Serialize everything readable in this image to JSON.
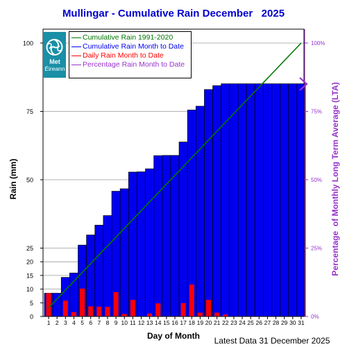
{
  "title": "Mullingar - Cumulative Rain December   2025",
  "footer": "Latest Data 31 December 2025",
  "logo": {
    "line1": "Met",
    "line2": "Éireann",
    "icon": "met-eireann-swirl-icon"
  },
  "colors": {
    "title": "#0000cc",
    "cumulative_bar": "#0000ee",
    "daily_bar": "#ff0000",
    "lta_line": "#007700",
    "percent": "#9933cc"
  },
  "legend": [
    {
      "label": "Cumulative Rain 1991-2020",
      "color": "#007700"
    },
    {
      "label": "Cumulative Rain Month to Date",
      "color": "#0000ee"
    },
    {
      "label": "Daily Rain Month to Date",
      "color": "#ff0000"
    },
    {
      "label": "Percentage Rain Month to Date",
      "color": "#9933cc"
    }
  ],
  "chart_data": {
    "type": "bar",
    "xlabel": "Day of Month",
    "ylabel": "Rain (mm)",
    "y2label": "Percentage  of Monthly Long Term Average (LTA)",
    "ylim": [
      0,
      100
    ],
    "y_ticks": [
      0,
      5,
      10,
      15,
      20,
      25,
      50,
      75,
      100
    ],
    "y2_ticks": [
      "0%",
      "25%",
      "50%",
      "75%",
      "100%"
    ],
    "categories": [
      "1",
      "2",
      "3",
      "4",
      "5",
      "6",
      "7",
      "8",
      "9",
      "10",
      "11",
      "12",
      "13",
      "14",
      "15",
      "16",
      "17",
      "18",
      "19",
      "20",
      "21",
      "22",
      "23",
      "24",
      "25",
      "26",
      "27",
      "28",
      "29",
      "30",
      "31"
    ],
    "series": [
      {
        "name": "Cumulative Rain Month to Date",
        "values": [
          8.5,
          8.5,
          14.3,
          15.9,
          26.1,
          29.8,
          33.4,
          36.9,
          45.8,
          46.7,
          52.8,
          52.9,
          54.0,
          58.8,
          58.9,
          58.9,
          63.8,
          75.5,
          76.9,
          83.0,
          84.4,
          85.1,
          85.1,
          85.1,
          85.1,
          85.1,
          85.1,
          85.1,
          85.1,
          85.1,
          85.1
        ]
      },
      {
        "name": "Daily Rain Month to Date",
        "values": [
          8.5,
          0.0,
          5.8,
          1.6,
          10.2,
          3.7,
          3.6,
          3.5,
          8.9,
          0.9,
          6.1,
          0.1,
          1.1,
          4.8,
          0.1,
          0.0,
          4.9,
          11.7,
          1.4,
          6.1,
          1.4,
          0.7,
          0.0,
          0.0,
          0.0,
          0.0,
          0.0,
          0.0,
          0.0,
          0.0,
          0.0
        ]
      },
      {
        "name": "Cumulative Rain 1991-2020",
        "start": 3.2,
        "end": 100
      },
      {
        "name": "Percentage Rain Month to Date",
        "value_percent": 85
      }
    ]
  }
}
